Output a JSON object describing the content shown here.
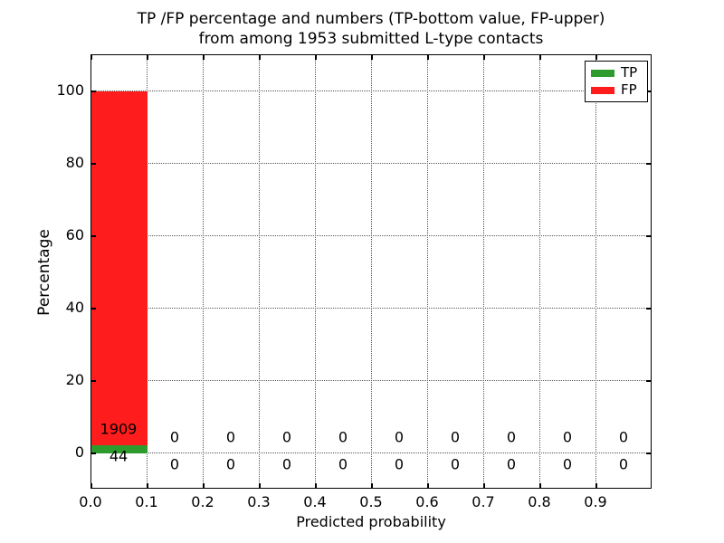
{
  "chart_data": {
    "type": "bar",
    "stacked": true,
    "title_lines": [
      "TP /FP percentage and numbers (TP-bottom value, FP-upper)",
      "from among 1953 submitted L-type contacts"
    ],
    "xlabel": "Predicted probability",
    "ylabel": "Percentage",
    "total_contacts": 1953,
    "bin_width": 0.1,
    "bin_starts": [
      0.0,
      0.1,
      0.2,
      0.3,
      0.4,
      0.5,
      0.6,
      0.7,
      0.8,
      0.9
    ],
    "series": [
      {
        "name": "TP",
        "color": "#2d9b2d",
        "counts": [
          44,
          0,
          0,
          0,
          0,
          0,
          0,
          0,
          0,
          0
        ]
      },
      {
        "name": "FP",
        "color": "#ff1c1c",
        "counts": [
          1909,
          0,
          0,
          0,
          0,
          0,
          0,
          0,
          0,
          0
        ]
      }
    ],
    "values_are": "counts; bar heights are percentages of total (count/1953*100)",
    "xticks": [
      "0.0",
      "0.1",
      "0.2",
      "0.3",
      "0.4",
      "0.5",
      "0.6",
      "0.7",
      "0.8",
      "0.9"
    ],
    "yticks": [
      "0",
      "20",
      "40",
      "60",
      "80",
      "100"
    ],
    "xlim": [
      0.0,
      1.0
    ],
    "ylim": [
      -10,
      110
    ],
    "grid": "dotted, on all major ticks",
    "legend": {
      "position": "upper right",
      "entries": [
        {
          "label": "TP",
          "color": "#2d9b2d"
        },
        {
          "label": "FP",
          "color": "#ff1c1c"
        }
      ]
    },
    "annotations": "FP count printed above each bar base (e.g. 1909), TP count printed below the zero line (e.g. 44); all empty bins labeled 0 / 0"
  }
}
